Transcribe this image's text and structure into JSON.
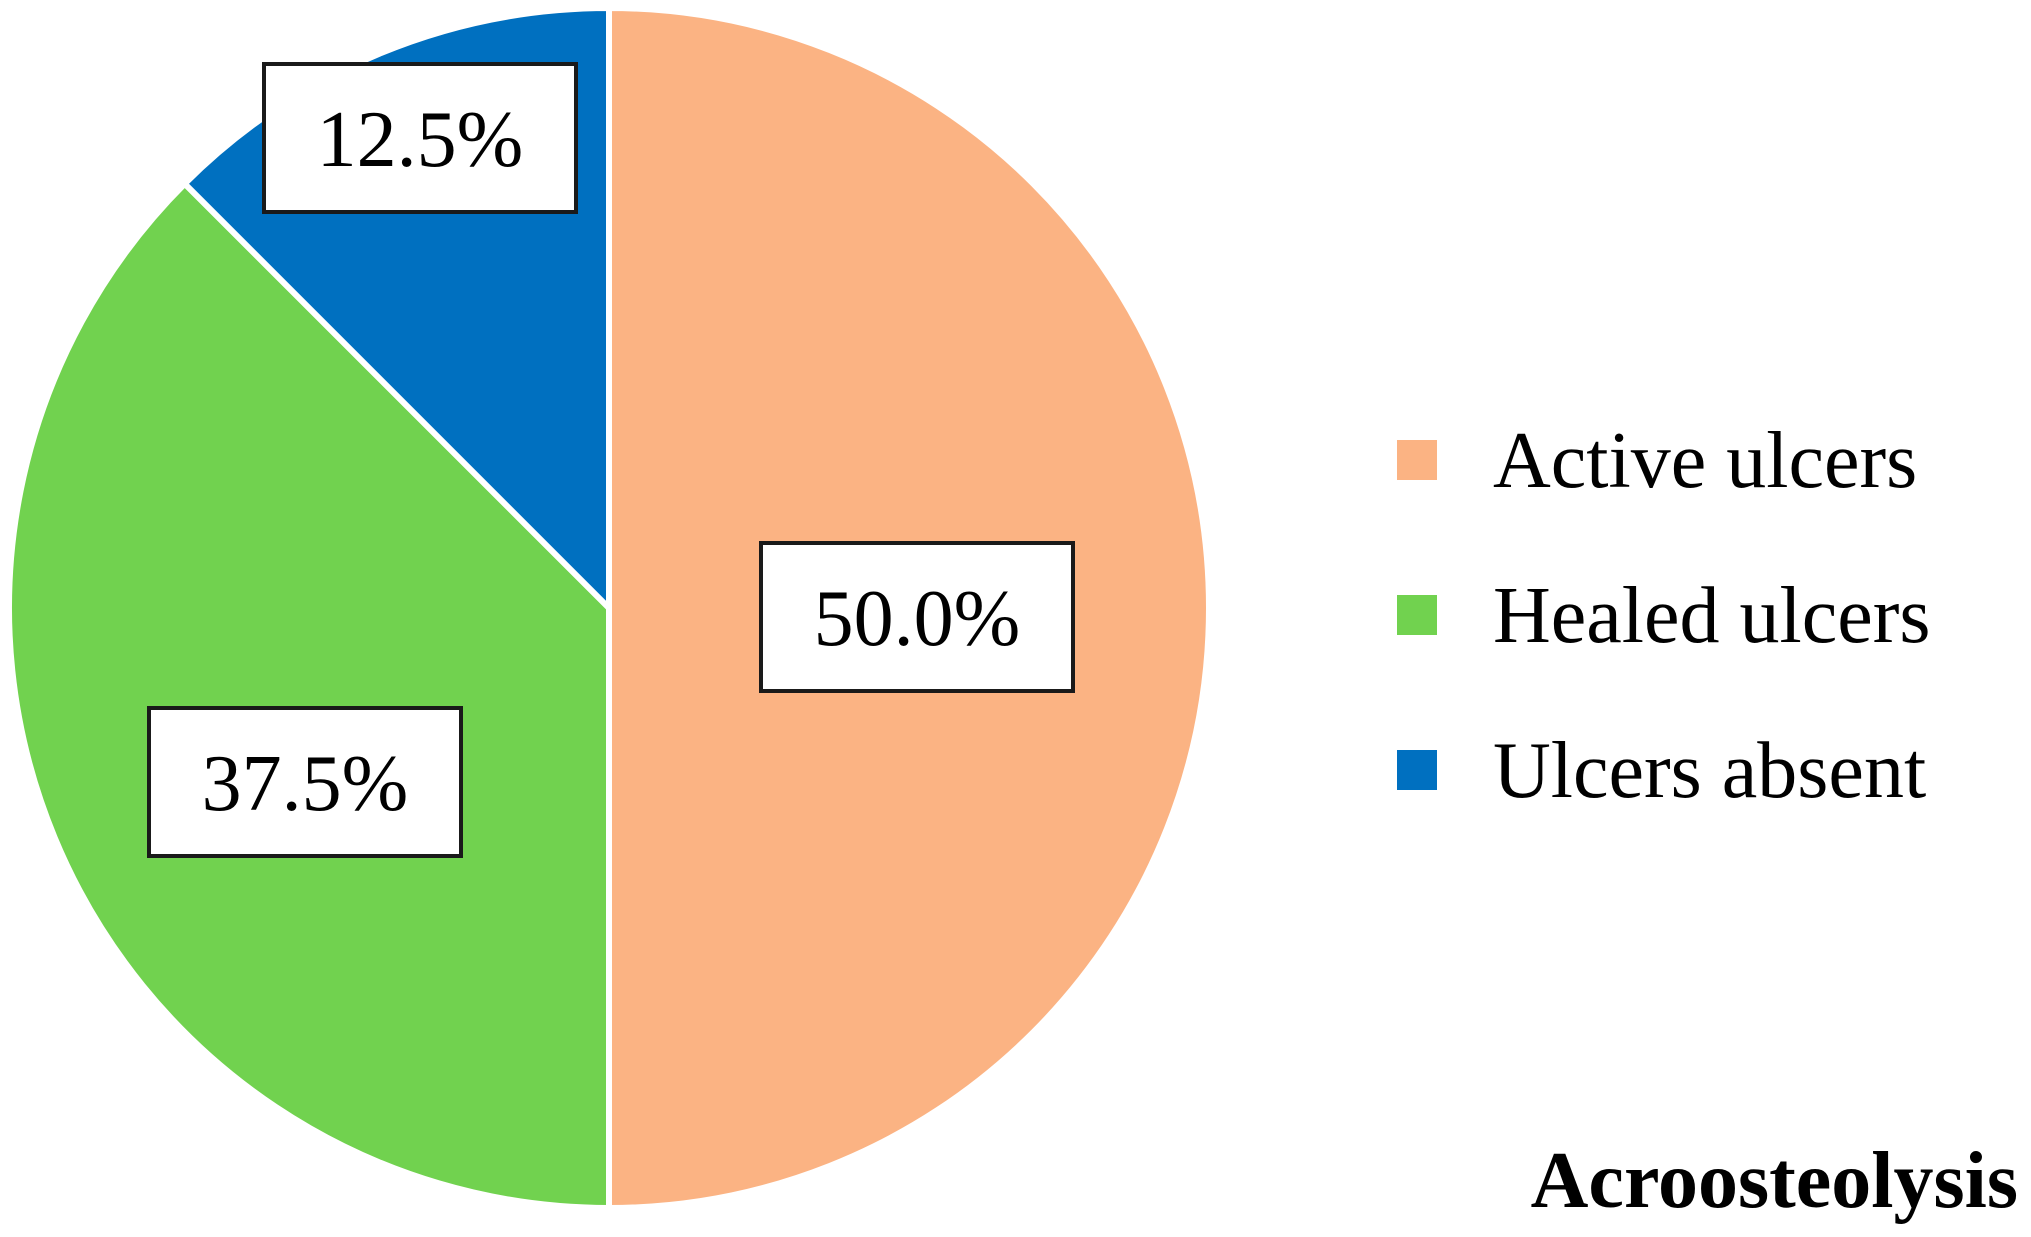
{
  "chart_data": {
    "type": "pie",
    "title": "",
    "caption": "Acroosteolysis",
    "legend_position": "right",
    "start_angle_deg": 0,
    "direction": "clockwise",
    "slices": [
      {
        "label": "Active ulcers",
        "value": 50.0,
        "value_label": "50.0%",
        "color": "#FBB383"
      },
      {
        "label": "Healed ulcers",
        "value": 37.5,
        "value_label": "37.5%",
        "color": "#71D24F"
      },
      {
        "label": "Ulcers absent",
        "value": 12.5,
        "value_label": "12.5%",
        "color": "#0070C0"
      }
    ]
  }
}
